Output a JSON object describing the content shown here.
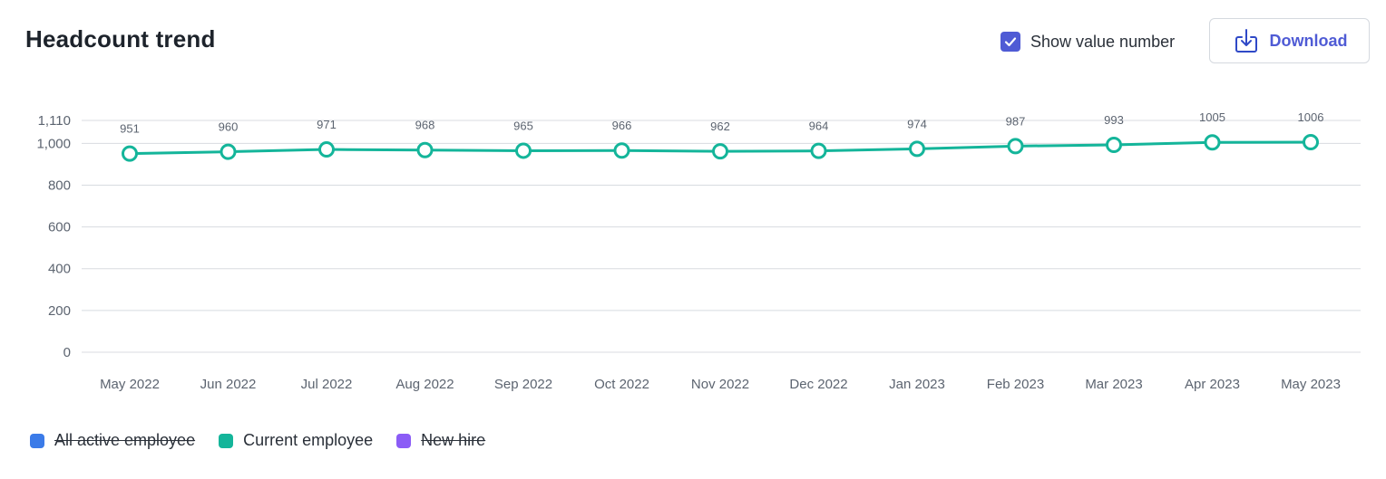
{
  "header": {
    "title": "Headcount trend",
    "show_value_label": "Show value number",
    "show_value_checked": true,
    "download_label": "Download"
  },
  "colors": {
    "accent": "#4f5bd5",
    "current_employee": "#14b59a",
    "all_active_employee": "#3b7be8",
    "new_hire": "#8b5cf6",
    "grid": "#d8dbe0"
  },
  "legend": [
    {
      "label": "All active employee",
      "color": "#3b7be8",
      "active": false
    },
    {
      "label": "Current employee",
      "color": "#14b59a",
      "active": true
    },
    {
      "label": "New hire",
      "color": "#8b5cf6",
      "active": false
    }
  ],
  "chart_data": {
    "type": "line",
    "title": "Headcount trend",
    "xlabel": "",
    "ylabel": "",
    "ylim": [
      0,
      1110
    ],
    "yticks": [
      0,
      200,
      400,
      600,
      800,
      1000,
      1110
    ],
    "ytick_labels": [
      "0",
      "200",
      "400",
      "600",
      "800",
      "1,000",
      "1,110"
    ],
    "grid": true,
    "legend_position": "bottom-left",
    "categories": [
      "May 2022",
      "Jun 2022",
      "Jul 2022",
      "Aug 2022",
      "Sep 2022",
      "Oct 2022",
      "Nov 2022",
      "Dec 2022",
      "Jan 2023",
      "Feb 2023",
      "Mar 2023",
      "Apr 2023",
      "May 2023"
    ],
    "series": [
      {
        "name": "Current employee",
        "color": "#14b59a",
        "values": [
          951,
          960,
          971,
          968,
          965,
          966,
          962,
          964,
          974,
          987,
          993,
          1005,
          1006
        ]
      }
    ]
  }
}
